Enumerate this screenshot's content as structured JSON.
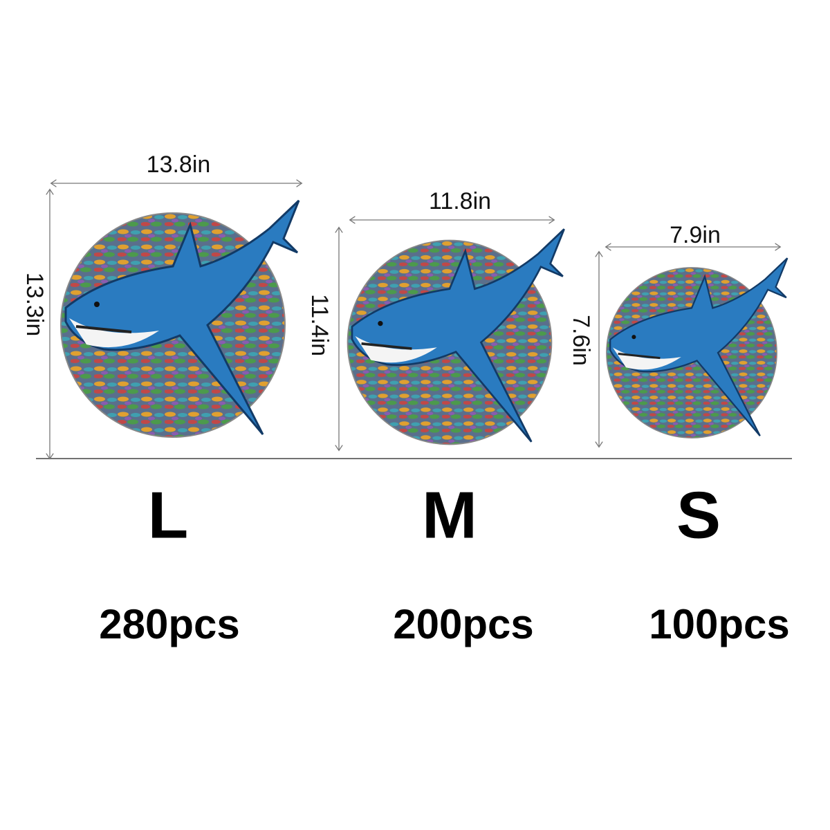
{
  "sizes": [
    {
      "width": "13.8in",
      "height": "13.3in",
      "label": "L",
      "pieces": "280pcs"
    },
    {
      "width": "11.8in",
      "height": "11.4in",
      "label": "M",
      "pieces": "200pcs"
    },
    {
      "width": "7.9in",
      "height": "7.6in",
      "label": "S",
      "pieces": "100pcs"
    }
  ]
}
